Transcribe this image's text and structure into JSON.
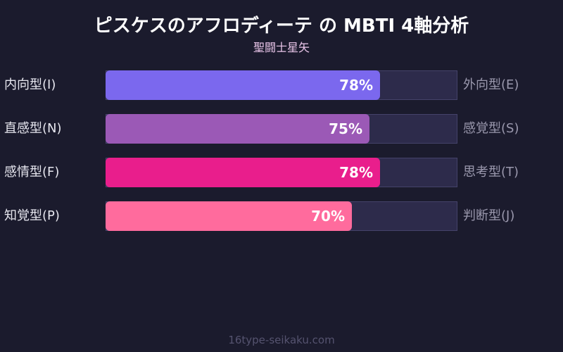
{
  "header": {
    "title": "ピスケスのアフロディーテ の MBTI 4軸分析",
    "subtitle": "聖闘士星矢"
  },
  "rows": [
    {
      "left_label": "内向型(I)",
      "right_label": "外向型(E)",
      "value": 78,
      "pct_label": "78%",
      "color": "#7b68ee"
    },
    {
      "left_label": "直感型(N)",
      "right_label": "感覚型(S)",
      "value": 75,
      "pct_label": "75%",
      "color": "#9b59b6"
    },
    {
      "left_label": "感情型(F)",
      "right_label": "思考型(T)",
      "value": 78,
      "pct_label": "78%",
      "color": "#e91e8c"
    },
    {
      "left_label": "知覚型(P)",
      "right_label": "判断型(J)",
      "value": 70,
      "pct_label": "70%",
      "color": "#ff6b9d"
    }
  ],
  "footer": {
    "text": "16type-seikaku.com"
  },
  "colors": {
    "background": "#1b1b2d",
    "track": "#2d2b4b",
    "track_border": "#45436a"
  },
  "chart_data": {
    "type": "bar",
    "orientation": "horizontal",
    "title": "ピスケスのアフロディーテ の MBTI 4軸分析",
    "subtitle": "聖闘士星矢",
    "categories": [
      "内向型(I) / 外向型(E)",
      "直感型(N) / 感覚型(S)",
      "感情型(F) / 思考型(T)",
      "知覚型(P) / 判断型(J)"
    ],
    "left_labels": [
      "内向型(I)",
      "直感型(N)",
      "感情型(F)",
      "知覚型(P)"
    ],
    "right_labels": [
      "外向型(E)",
      "感覚型(S)",
      "思考型(T)",
      "判断型(J)"
    ],
    "values": [
      78,
      75,
      78,
      70
    ],
    "colors": [
      "#7b68ee",
      "#9b59b6",
      "#e91e8c",
      "#ff6b9d"
    ],
    "xlim": [
      0,
      100
    ],
    "unit": "%",
    "grid": false,
    "legend": "none",
    "xlabel": "",
    "ylabel": ""
  }
}
